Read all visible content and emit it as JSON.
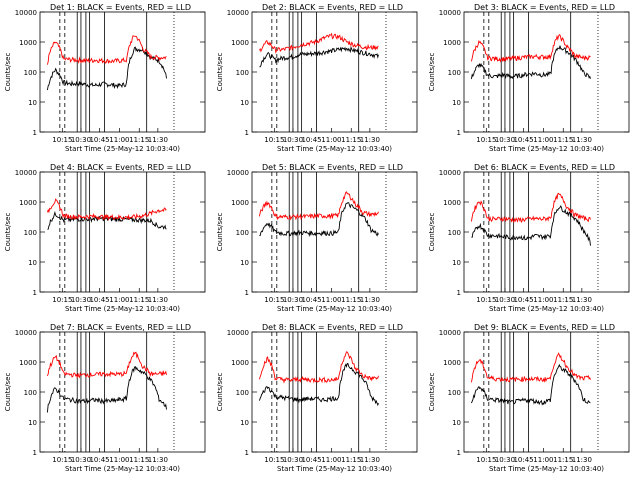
{
  "chart_data": [
    {
      "panel": "Det 1",
      "title": "Det 1: BLACK = Events, RED = LLD",
      "type": "line",
      "ylabel": "Counts/sec",
      "xlabel": "Start Time (25-May-12 10:03:40)",
      "yscale": "log",
      "ylim": [
        1,
        10000
      ],
      "yticks": [
        "1",
        "10",
        "100",
        "1000",
        "10000"
      ],
      "xticks": [
        "10:15",
        "10:30",
        "10:45",
        "11:00",
        "11:15",
        "11:30"
      ],
      "series": [
        {
          "name": "BLACK = Events",
          "color": "#000000",
          "profile": "a",
          "values": [
            25,
            120,
            45,
            40,
            42,
            38,
            36,
            40,
            38,
            35,
            40,
            600,
            550,
            300,
            250,
            60
          ]
        },
        {
          "name": "RED = LLD",
          "color": "#ff0000",
          "profile": "a",
          "values": [
            180,
            1000,
            270,
            260,
            250,
            240,
            250,
            240,
            230,
            240,
            250,
            1700,
            600,
            320,
            300,
            310
          ]
        }
      ]
    },
    {
      "panel": "Det 2",
      "title": "Det 2: BLACK = Events, RED = LLD",
      "type": "line",
      "ylabel": "Counts/sec",
      "xlabel": "Start Time (25-May-12 10:03:40)",
      "yscale": "log",
      "ylim": [
        1,
        10000
      ],
      "yticks": [
        "1",
        "10",
        "100",
        "1000",
        "10000"
      ],
      "xticks": [
        "10:15",
        "10:30",
        "10:45",
        "11:00",
        "11:15",
        "11:30"
      ],
      "series": [
        {
          "name": "BLACK = Events",
          "color": "#000000",
          "profile": "b",
          "values": [
            150,
            400,
            250,
            300,
            320,
            380,
            400,
            420,
            460,
            500,
            560,
            620,
            520,
            450,
            400,
            330
          ]
        },
        {
          "name": "RED = LLD",
          "color": "#ff0000",
          "profile": "b",
          "values": [
            500,
            1000,
            550,
            560,
            650,
            780,
            900,
            1000,
            1300,
            1600,
            1500,
            1000,
            800,
            700,
            650,
            700
          ]
        }
      ]
    },
    {
      "panel": "Det 3",
      "title": "Det 3: BLACK = Events, RED = LLD",
      "type": "line",
      "ylabel": "Counts/sec",
      "xlabel": "Start Time (25-May-12 10:03:40)",
      "yscale": "log",
      "ylim": [
        1,
        10000
      ],
      "yticks": [
        "1",
        "10",
        "100",
        "1000",
        "10000"
      ],
      "xticks": [
        "10:15",
        "10:30",
        "10:45",
        "11:00",
        "11:15",
        "11:30"
      ],
      "series": [
        {
          "name": "BLACK = Events",
          "color": "#000000",
          "profile": "a",
          "values": [
            60,
            180,
            80,
            70,
            80,
            70,
            75,
            85,
            90,
            80,
            85,
            700,
            500,
            280,
            100,
            60
          ]
        },
        {
          "name": "RED = LLD",
          "color": "#ff0000",
          "profile": "a",
          "values": [
            250,
            1000,
            300,
            280,
            270,
            280,
            300,
            320,
            330,
            320,
            330,
            1600,
            700,
            350,
            300,
            310
          ]
        }
      ]
    },
    {
      "panel": "Det 4",
      "title": "Det 4: BLACK = Events, RED = LLD",
      "type": "line",
      "ylabel": "Counts/sec",
      "xlabel": "Start Time (25-May-12 10:03:40)",
      "yscale": "log",
      "ylim": [
        1,
        10000
      ],
      "yticks": [
        "1",
        "10",
        "100",
        "1000",
        "10000"
      ],
      "xticks": [
        "10:15",
        "10:30",
        "10:45",
        "11:00",
        "11:15",
        "11:30"
      ],
      "series": [
        {
          "name": "BLACK = Events",
          "color": "#000000",
          "profile": "b",
          "values": [
            120,
            400,
            250,
            260,
            270,
            270,
            280,
            280,
            270,
            270,
            260,
            260,
            250,
            240,
            150,
            150
          ]
        },
        {
          "name": "RED = LLD",
          "color": "#ff0000",
          "profile": "b",
          "values": [
            400,
            1100,
            350,
            330,
            320,
            330,
            330,
            320,
            320,
            310,
            310,
            320,
            350,
            420,
            530,
            540
          ]
        }
      ]
    },
    {
      "panel": "Det 5",
      "title": "Det 5: BLACK = Events, RED = LLD",
      "type": "line",
      "ylabel": "Counts/sec",
      "xlabel": "Start Time (25-May-12 10:03:40)",
      "yscale": "log",
      "ylim": [
        1,
        10000
      ],
      "yticks": [
        "1",
        "10",
        "100",
        "1000",
        "10000"
      ],
      "xticks": [
        "10:15",
        "10:30",
        "10:45",
        "11:00",
        "11:15",
        "11:30"
      ],
      "series": [
        {
          "name": "BLACK = Events",
          "color": "#000000",
          "profile": "a",
          "values": [
            70,
            200,
            100,
            90,
            90,
            95,
            95,
            90,
            95,
            90,
            100,
            900,
            600,
            350,
            120,
            80
          ]
        },
        {
          "name": "RED = LLD",
          "color": "#ff0000",
          "profile": "a",
          "values": [
            350,
            1000,
            330,
            320,
            320,
            330,
            330,
            340,
            350,
            340,
            360,
            2000,
            900,
            450,
            380,
            420
          ]
        }
      ]
    },
    {
      "panel": "Det 6",
      "title": "Det 6: BLACK = Events, RED = LLD",
      "type": "line",
      "ylabel": "Counts/sec",
      "xlabel": "Start Time (25-May-12 10:03:40)",
      "yscale": "log",
      "ylim": [
        1,
        10000
      ],
      "yticks": [
        "1",
        "10",
        "100",
        "1000",
        "10000"
      ],
      "xticks": [
        "10:15",
        "10:30",
        "10:45",
        "11:00",
        "11:15",
        "11:30"
      ],
      "series": [
        {
          "name": "BLACK = Events",
          "color": "#000000",
          "profile": "a",
          "values": [
            60,
            170,
            80,
            75,
            70,
            65,
            70,
            60,
            75,
            70,
            75,
            700,
            450,
            300,
            120,
            40
          ]
        },
        {
          "name": "RED = LLD",
          "color": "#ff0000",
          "profile": "a",
          "values": [
            250,
            1100,
            280,
            270,
            280,
            260,
            250,
            270,
            280,
            270,
            300,
            1800,
            700,
            380,
            300,
            260
          ]
        }
      ]
    },
    {
      "panel": "Det 7",
      "title": "Det 7: BLACK = Events, RED = LLD",
      "type": "line",
      "ylabel": "Counts/sec",
      "xlabel": "Start Time (25-May-12 10:03:40)",
      "yscale": "log",
      "ylim": [
        1,
        10000
      ],
      "yticks": [
        "1",
        "10",
        "100",
        "1000",
        "10000"
      ],
      "xticks": [
        "10:15",
        "10:30",
        "10:45",
        "11:00",
        "11:15",
        "11:30"
      ],
      "series": [
        {
          "name": "BLACK = Events",
          "color": "#000000",
          "profile": "a",
          "values": [
            25,
            130,
            60,
            55,
            50,
            50,
            55,
            50,
            50,
            55,
            60,
            650,
            450,
            250,
            60,
            30
          ]
        },
        {
          "name": "RED = LLD",
          "color": "#ff0000",
          "profile": "a",
          "values": [
            350,
            1500,
            400,
            380,
            360,
            380,
            380,
            400,
            400,
            390,
            420,
            2000,
            700,
            400,
            400,
            420
          ]
        }
      ]
    },
    {
      "panel": "Det 8",
      "title": "Det 8: BLACK = Events, RED = LLD",
      "type": "line",
      "ylabel": "Counts/sec",
      "xlabel": "Start Time (25-May-12 10:03:40)",
      "yscale": "log",
      "ylim": [
        1,
        10000
      ],
      "yticks": [
        "1",
        "10",
        "100",
        "1000",
        "10000"
      ],
      "xticks": [
        "10:15",
        "10:30",
        "10:45",
        "11:00",
        "11:15",
        "11:30"
      ],
      "series": [
        {
          "name": "BLACK = Events",
          "color": "#000000",
          "profile": "a",
          "values": [
            50,
            150,
            70,
            65,
            60,
            55,
            60,
            60,
            55,
            60,
            65,
            800,
            500,
            280,
            70,
            40
          ]
        },
        {
          "name": "RED = LLD",
          "color": "#ff0000",
          "profile": "a",
          "values": [
            250,
            1300,
            280,
            260,
            250,
            270,
            260,
            250,
            260,
            250,
            280,
            2000,
            650,
            350,
            280,
            300
          ]
        }
      ]
    },
    {
      "panel": "Det 9",
      "title": "Det 9: BLACK = Events, RED = LLD",
      "type": "line",
      "ylabel": "Counts/sec",
      "xlabel": "Start Time (25-May-12 10:03:40)",
      "yscale": "log",
      "ylim": [
        1,
        10000
      ],
      "yticks": [
        "1",
        "10",
        "100",
        "1000",
        "10000"
      ],
      "xticks": [
        "10:15",
        "10:30",
        "10:45",
        "11:00",
        "11:15",
        "11:30"
      ],
      "series": [
        {
          "name": "BLACK = Events",
          "color": "#000000",
          "profile": "a",
          "values": [
            40,
            150,
            60,
            55,
            50,
            45,
            50,
            55,
            50,
            45,
            55,
            700,
            450,
            250,
            60,
            40
          ]
        },
        {
          "name": "RED = LLD",
          "color": "#ff0000",
          "profile": "a",
          "values": [
            250,
            1200,
            300,
            280,
            270,
            260,
            270,
            280,
            270,
            260,
            290,
            1700,
            700,
            350,
            280,
            300
          ]
        }
      ]
    }
  ]
}
